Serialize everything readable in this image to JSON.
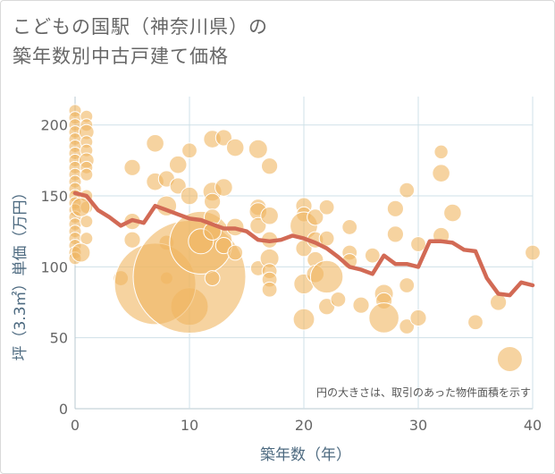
{
  "chart_data": {
    "type": "scatter",
    "title_line1": "こどもの国駅（神奈川県）の",
    "title_line2": "築年数別中古戸建て価格",
    "xlabel": "築年数（年）",
    "ylabel": "坪（3.3㎡）単価（万円）",
    "note": "円の大きさは、取引のあった物件面積を示す",
    "xlim": [
      0,
      40
    ],
    "ylim": [
      0,
      220
    ],
    "xticks": [
      "0",
      "10",
      "20",
      "30",
      "40"
    ],
    "yticks": [
      "0",
      "50",
      "100",
      "150",
      "200"
    ],
    "grid": true,
    "colors": {
      "bubble": "#f0b660",
      "trend": "#d26a55",
      "grid": "#cfe0e8",
      "axis": "#b8c8d0"
    },
    "bubbles": [
      {
        "x": 0,
        "y": 210,
        "s": 1
      },
      {
        "x": 0,
        "y": 205,
        "s": 1
      },
      {
        "x": 0,
        "y": 200,
        "s": 1
      },
      {
        "x": 0,
        "y": 195,
        "s": 1
      },
      {
        "x": 0,
        "y": 190,
        "s": 1
      },
      {
        "x": 0,
        "y": 185,
        "s": 1
      },
      {
        "x": 0,
        "y": 180,
        "s": 1
      },
      {
        "x": 0,
        "y": 175,
        "s": 1
      },
      {
        "x": 0,
        "y": 170,
        "s": 1
      },
      {
        "x": 0,
        "y": 165,
        "s": 1
      },
      {
        "x": 0,
        "y": 160,
        "s": 1
      },
      {
        "x": 0,
        "y": 155,
        "s": 1
      },
      {
        "x": 0,
        "y": 150,
        "s": 1
      },
      {
        "x": 0,
        "y": 145,
        "s": 1
      },
      {
        "x": 0,
        "y": 140,
        "s": 1
      },
      {
        "x": 0,
        "y": 135,
        "s": 1
      },
      {
        "x": 0,
        "y": 130,
        "s": 1
      },
      {
        "x": 0,
        "y": 125,
        "s": 1
      },
      {
        "x": 0,
        "y": 120,
        "s": 1
      },
      {
        "x": 0,
        "y": 115,
        "s": 1
      },
      {
        "x": 0,
        "y": 110,
        "s": 1
      },
      {
        "x": 0,
        "y": 106,
        "s": 1
      },
      {
        "x": 1,
        "y": 206,
        "s": 1
      },
      {
        "x": 1,
        "y": 200,
        "s": 1
      },
      {
        "x": 1,
        "y": 195,
        "s": 1.2
      },
      {
        "x": 1,
        "y": 188,
        "s": 1
      },
      {
        "x": 1,
        "y": 182,
        "s": 1
      },
      {
        "x": 1,
        "y": 175,
        "s": 1.2
      },
      {
        "x": 1,
        "y": 170,
        "s": 1
      },
      {
        "x": 1,
        "y": 165,
        "s": 1
      },
      {
        "x": 1,
        "y": 150,
        "s": 1
      },
      {
        "x": 1,
        "y": 142,
        "s": 1
      },
      {
        "x": 1,
        "y": 132,
        "s": 1
      },
      {
        "x": 1,
        "y": 120,
        "s": 1
      },
      {
        "x": 0.5,
        "y": 110,
        "s": 1.5
      },
      {
        "x": 0.5,
        "y": 142,
        "s": 1.5
      },
      {
        "x": 4,
        "y": 92,
        "s": 1.2
      },
      {
        "x": 5,
        "y": 170,
        "s": 1.3
      },
      {
        "x": 5,
        "y": 132,
        "s": 1.3
      },
      {
        "x": 5,
        "y": 119,
        "s": 1.3
      },
      {
        "x": 7,
        "y": 187,
        "s": 1.4
      },
      {
        "x": 7,
        "y": 160,
        "s": 1.4
      },
      {
        "x": 8,
        "y": 162,
        "s": 1.3
      },
      {
        "x": 8,
        "y": 143,
        "s": 1.6
      },
      {
        "x": 8,
        "y": 117,
        "s": 1.2
      },
      {
        "x": 8,
        "y": 92,
        "s": 1
      },
      {
        "x": 9,
        "y": 172,
        "s": 1.4
      },
      {
        "x": 9,
        "y": 157,
        "s": 1.3
      },
      {
        "x": 10,
        "y": 182,
        "s": 1.2
      },
      {
        "x": 10,
        "y": 150,
        "s": 1.4
      },
      {
        "x": 10,
        "y": 72,
        "s": 3
      },
      {
        "x": 7,
        "y": 88,
        "s": 6.5
      },
      {
        "x": 10,
        "y": 93,
        "s": 9
      },
      {
        "x": 11,
        "y": 117,
        "s": 5
      },
      {
        "x": 11,
        "y": 118,
        "s": 2
      },
      {
        "x": 12,
        "y": 190,
        "s": 1.4
      },
      {
        "x": 12,
        "y": 153,
        "s": 1.5
      },
      {
        "x": 12,
        "y": 146,
        "s": 1.3
      },
      {
        "x": 12,
        "y": 135,
        "s": 1.3
      },
      {
        "x": 12,
        "y": 125,
        "s": 1.4
      },
      {
        "x": 12,
        "y": 92,
        "s": 1.2
      },
      {
        "x": 13,
        "y": 191,
        "s": 1.3
      },
      {
        "x": 13,
        "y": 156,
        "s": 1.4
      },
      {
        "x": 13,
        "y": 115,
        "s": 1.3
      },
      {
        "x": 14,
        "y": 184,
        "s": 1.4
      },
      {
        "x": 14,
        "y": 128,
        "s": 1.4
      },
      {
        "x": 14,
        "y": 110,
        "s": 1.2
      },
      {
        "x": 16,
        "y": 183,
        "s": 1.5
      },
      {
        "x": 16,
        "y": 142,
        "s": 1.3
      },
      {
        "x": 16,
        "y": 139,
        "s": 1.4
      },
      {
        "x": 16,
        "y": 129,
        "s": 1.3
      },
      {
        "x": 16,
        "y": 99,
        "s": 1.2
      },
      {
        "x": 17,
        "y": 171,
        "s": 1.3
      },
      {
        "x": 17,
        "y": 136,
        "s": 1.4
      },
      {
        "x": 17,
        "y": 119,
        "s": 1.3
      },
      {
        "x": 17,
        "y": 106,
        "s": 1.5
      },
      {
        "x": 17,
        "y": 97,
        "s": 1.2
      },
      {
        "x": 17,
        "y": 91,
        "s": 1.2
      },
      {
        "x": 17,
        "y": 84,
        "s": 1.2
      },
      {
        "x": 20,
        "y": 143,
        "s": 1.3
      },
      {
        "x": 20,
        "y": 137,
        "s": 1.2
      },
      {
        "x": 20,
        "y": 129,
        "s": 2.2
      },
      {
        "x": 20,
        "y": 113,
        "s": 1.3
      },
      {
        "x": 20,
        "y": 88,
        "s": 1.6
      },
      {
        "x": 20,
        "y": 63,
        "s": 1.7
      },
      {
        "x": 21,
        "y": 135,
        "s": 1.3
      },
      {
        "x": 21,
        "y": 119,
        "s": 1.3
      },
      {
        "x": 21,
        "y": 105,
        "s": 1.3
      },
      {
        "x": 21,
        "y": 95,
        "s": 1.4
      },
      {
        "x": 22,
        "y": 142,
        "s": 1.2
      },
      {
        "x": 22,
        "y": 120,
        "s": 1.2
      },
      {
        "x": 22,
        "y": 93,
        "s": 2.6
      },
      {
        "x": 22,
        "y": 72,
        "s": 1.3
      },
      {
        "x": 23,
        "y": 77,
        "s": 1.2
      },
      {
        "x": 24,
        "y": 128,
        "s": 1.2
      },
      {
        "x": 24,
        "y": 110,
        "s": 1.2
      },
      {
        "x": 24,
        "y": 104,
        "s": 1.2
      },
      {
        "x": 25,
        "y": 73,
        "s": 1.3
      },
      {
        "x": 26,
        "y": 108,
        "s": 1.2
      },
      {
        "x": 27,
        "y": 81,
        "s": 1.5
      },
      {
        "x": 27,
        "y": 76,
        "s": 1.3
      },
      {
        "x": 27,
        "y": 64,
        "s": 2.4
      },
      {
        "x": 28,
        "y": 141,
        "s": 1.3
      },
      {
        "x": 28,
        "y": 123,
        "s": 1.3
      },
      {
        "x": 29,
        "y": 154,
        "s": 1.2
      },
      {
        "x": 29,
        "y": 87,
        "s": 1.2
      },
      {
        "x": 29,
        "y": 58,
        "s": 1.2
      },
      {
        "x": 30,
        "y": 116,
        "s": 1.2
      },
      {
        "x": 30,
        "y": 64,
        "s": 1.3
      },
      {
        "x": 32,
        "y": 181,
        "s": 1.1
      },
      {
        "x": 32,
        "y": 166,
        "s": 1.4
      },
      {
        "x": 32,
        "y": 122,
        "s": 1.3
      },
      {
        "x": 33,
        "y": 138,
        "s": 1.4
      },
      {
        "x": 35,
        "y": 61,
        "s": 1.2
      },
      {
        "x": 37,
        "y": 75,
        "s": 1.3
      },
      {
        "x": 38,
        "y": 35,
        "s": 2
      },
      {
        "x": 40,
        "y": 110,
        "s": 1.2
      }
    ],
    "series": [
      {
        "x": [
          0,
          1,
          2,
          3,
          4,
          5,
          6,
          7,
          8,
          9,
          10,
          11,
          12,
          13,
          14,
          15,
          16,
          17,
          18,
          19,
          20,
          21,
          22,
          23,
          24,
          25,
          26,
          27,
          28,
          29,
          30,
          31,
          32,
          33,
          34,
          35,
          36,
          37,
          38,
          39,
          40
        ],
        "y": [
          152,
          150,
          140,
          135,
          129,
          133,
          131,
          143,
          140,
          137,
          134,
          133,
          130,
          127,
          127,
          125,
          119,
          118,
          119,
          122,
          120,
          117,
          113,
          107,
          100,
          98,
          95,
          108,
          102,
          102,
          100,
          118,
          118,
          117,
          112,
          111,
          92,
          81,
          80,
          89,
          87
        ]
      }
    ]
  }
}
